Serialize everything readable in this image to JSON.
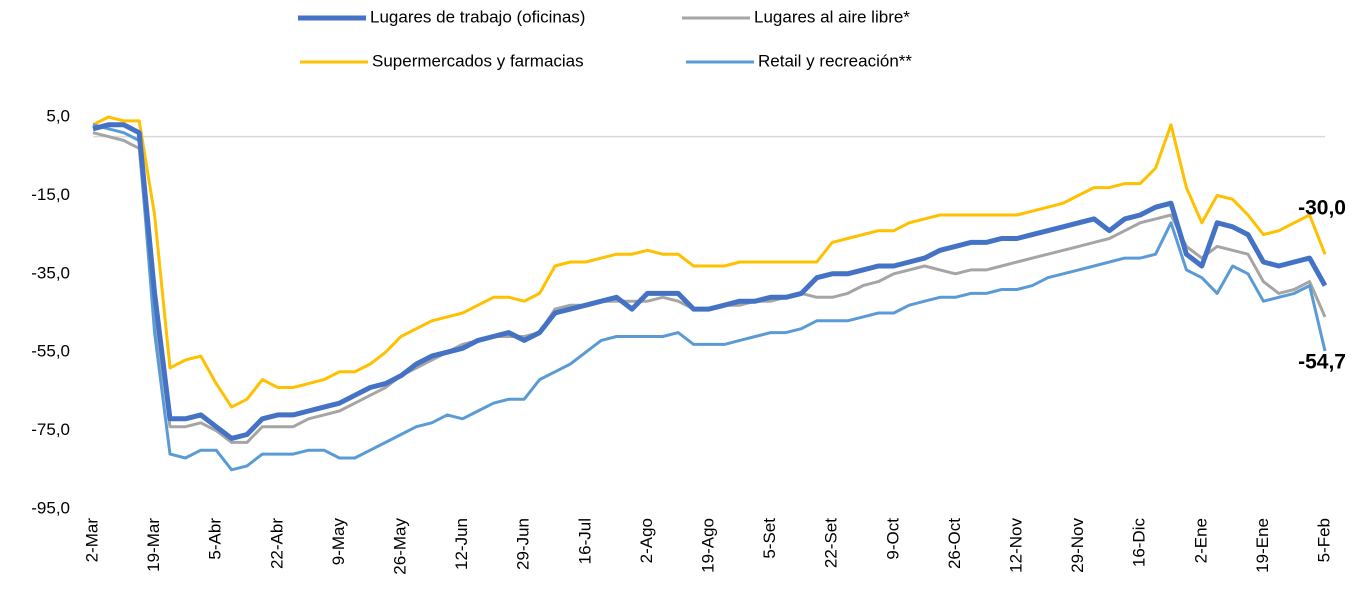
{
  "chart_data": {
    "type": "line",
    "categories": [
      "2-Mar",
      null,
      null,
      null,
      "19-Mar",
      null,
      null,
      null,
      "5-Abr",
      null,
      null,
      null,
      "22-Abr",
      null,
      null,
      null,
      "9-May",
      null,
      null,
      null,
      "26-May",
      null,
      null,
      null,
      "12-Jun",
      null,
      null,
      null,
      "29-Jun",
      null,
      null,
      null,
      "16-Jul",
      null,
      null,
      null,
      "2-Ago",
      null,
      null,
      null,
      "19-Ago",
      null,
      null,
      null,
      "5-Set",
      null,
      null,
      null,
      "22-Set",
      null,
      null,
      null,
      "9-Oct",
      null,
      null,
      null,
      "26-Oct",
      null,
      null,
      null,
      "12-Nov",
      null,
      null,
      null,
      "29-Nov",
      null,
      null,
      null,
      "16-Dic",
      null,
      null,
      null,
      "2-Ene",
      null,
      null,
      null,
      "19-Ene",
      null,
      null,
      null,
      "5-Feb"
    ],
    "series": [
      {
        "name": "Lugares de trabajo (oficinas)",
        "color": "#4472c4",
        "line_width": 5,
        "values": [
          2,
          3,
          3,
          1,
          -40,
          -72,
          -72,
          -71,
          -74,
          -77,
          -76,
          -72,
          -71,
          -71,
          -70,
          -69,
          -68,
          -66,
          -64,
          -63,
          -61,
          -58,
          -56,
          -55,
          -54,
          -52,
          -51,
          -50,
          -52,
          -50,
          -45,
          -44,
          -43,
          -42,
          -41,
          -44,
          -40,
          -40,
          -40,
          -44,
          -44,
          -43,
          -42,
          -42,
          -41,
          -41,
          -40,
          -36,
          -35,
          -35,
          -34,
          -33,
          -33,
          -32,
          -31,
          -29,
          -28,
          -27,
          -27,
          -26,
          -26,
          -25,
          -24,
          -23,
          -22,
          -21,
          -24,
          -21,
          -20,
          -18,
          -17,
          -30,
          -33,
          -22,
          -23,
          -25,
          -32,
          -33,
          -32,
          -31,
          -38
        ]
      },
      {
        "name": "Lugares al aire libre*",
        "color": "#a5a5a5",
        "line_width": 3,
        "values": [
          1,
          0,
          -1,
          -3,
          -45,
          -74,
          -74,
          -73,
          -75,
          -78,
          -78,
          -74,
          -74,
          -74,
          -72,
          -71,
          -70,
          -68,
          -66,
          -64,
          -61,
          -59,
          -57,
          -55,
          -53,
          -52,
          -51,
          -51,
          -51,
          -50,
          -44,
          -43,
          -43,
          -42,
          -42,
          -42,
          -42,
          -41,
          -42,
          -44,
          -44,
          -43,
          -43,
          -42,
          -42,
          -41,
          -40,
          -41,
          -41,
          -40,
          -38,
          -37,
          -35,
          -34,
          -33,
          -34,
          -35,
          -34,
          -34,
          -33,
          -32,
          -31,
          -30,
          -29,
          -28,
          -27,
          -26,
          -24,
          -22,
          -21,
          -20,
          -28,
          -31,
          -28,
          -29,
          -30,
          -37,
          -40,
          -39,
          -37,
          -46
        ]
      },
      {
        "name": "Supermercados y farmacias",
        "color": "#ffc000",
        "line_width": 3,
        "values": [
          3,
          5,
          4,
          4,
          -20,
          -59,
          -57,
          -56,
          -63,
          -69,
          -67,
          -62,
          -64,
          -64,
          -63,
          -62,
          -60,
          -60,
          -58,
          -55,
          -51,
          -49,
          -47,
          -46,
          -45,
          -43,
          -41,
          -41,
          -42,
          -40,
          -33,
          -32,
          -32,
          -31,
          -30,
          -30,
          -29,
          -30,
          -30,
          -33,
          -33,
          -33,
          -32,
          -32,
          -32,
          -32,
          -32,
          -32,
          -27,
          -26,
          -25,
          -24,
          -24,
          -22,
          -21,
          -20,
          -20,
          -20,
          -20,
          -20,
          -20,
          -19,
          -18,
          -17,
          -15,
          -13,
          -13,
          -12,
          -12,
          -8,
          3,
          -13,
          -22,
          -15,
          -16,
          -20,
          -25,
          -24,
          -22,
          -20,
          -30
        ],
        "value_labels": [
          null,
          null,
          null,
          null,
          null,
          null,
          null,
          null,
          null,
          null,
          null,
          null,
          null,
          null,
          null,
          null,
          null,
          null,
          null,
          null,
          null,
          null,
          null,
          null,
          null,
          null,
          null,
          null,
          null,
          null,
          null,
          null,
          null,
          null,
          null,
          null,
          null,
          null,
          null,
          null,
          null,
          null,
          null,
          null,
          null,
          null,
          null,
          null,
          null,
          null,
          null,
          null,
          null,
          null,
          null,
          null,
          null,
          null,
          null,
          null,
          null,
          null,
          null,
          null,
          null,
          null,
          null,
          null,
          null,
          null,
          null,
          null,
          null,
          null,
          null,
          null,
          null,
          null,
          null,
          null,
          "-30,0"
        ]
      },
      {
        "name": "Retail y recreación**",
        "color": "#5b9bd5",
        "line_width": 3,
        "values": [
          3,
          2,
          1,
          -1,
          -50,
          -81,
          -82,
          -80,
          -80,
          -85,
          -84,
          -81,
          -81,
          -81,
          -80,
          -80,
          -82,
          -82,
          -80,
          -78,
          -76,
          -74,
          -73,
          -71,
          -72,
          -70,
          -68,
          -67,
          -67,
          -62,
          -60,
          -58,
          -55,
          -52,
          -51,
          -51,
          -51,
          -51,
          -50,
          -53,
          -53,
          -53,
          -52,
          -51,
          -50,
          -50,
          -49,
          -47,
          -47,
          -47,
          -46,
          -45,
          -45,
          -43,
          -42,
          -41,
          -41,
          -40,
          -40,
          -39,
          -39,
          -38,
          -36,
          -35,
          -34,
          -33,
          -32,
          -31,
          -31,
          -30,
          -22,
          -34,
          -36,
          -40,
          -33,
          -35,
          -42,
          -41,
          -40,
          -38,
          -54.7
        ],
        "value_labels": [
          null,
          null,
          null,
          null,
          null,
          null,
          null,
          null,
          null,
          null,
          null,
          null,
          null,
          null,
          null,
          null,
          null,
          null,
          null,
          null,
          null,
          null,
          null,
          null,
          null,
          null,
          null,
          null,
          null,
          null,
          null,
          null,
          null,
          null,
          null,
          null,
          null,
          null,
          null,
          null,
          null,
          null,
          null,
          null,
          null,
          null,
          null,
          null,
          null,
          null,
          null,
          null,
          null,
          null,
          null,
          null,
          null,
          null,
          null,
          null,
          null,
          null,
          null,
          null,
          null,
          null,
          null,
          null,
          null,
          null,
          null,
          null,
          null,
          null,
          null,
          null,
          null,
          null,
          null,
          null,
          "-54,7"
        ]
      }
    ],
    "ylim": [
      -95,
      5
    ],
    "yticks": [
      {
        "value": 5,
        "label": "5,0"
      },
      {
        "value": -15,
        "label": "-15,0"
      },
      {
        "value": -35,
        "label": "-35,0"
      },
      {
        "value": -55,
        "label": "-55,0"
      },
      {
        "value": -75,
        "label": "-75,0"
      },
      {
        "value": -95,
        "label": "-95,0"
      }
    ],
    "zero_line": true,
    "legend": "top"
  }
}
